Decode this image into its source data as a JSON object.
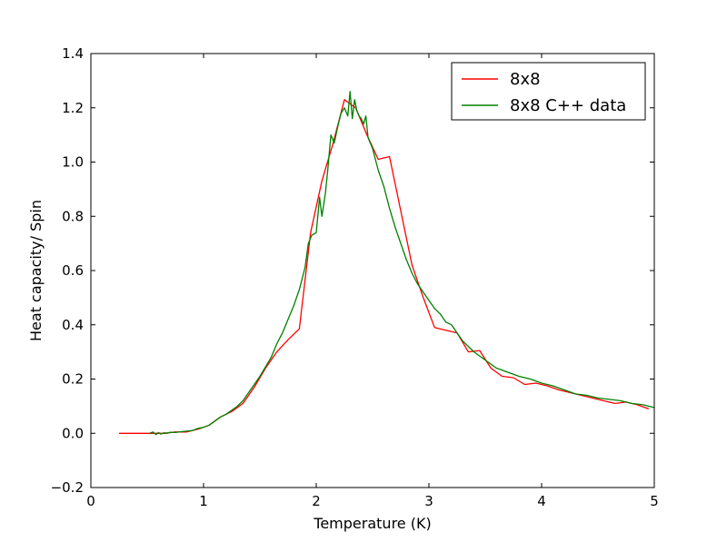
{
  "chart_data": {
    "type": "line",
    "title": "",
    "xlabel": "Temperature (K)",
    "ylabel": "Heat capacity/ Spin",
    "xlim": [
      0,
      5
    ],
    "ylim": [
      -0.2,
      1.4
    ],
    "xticks": [
      0,
      1,
      2,
      3,
      4,
      5
    ],
    "xtick_labels": [
      "0",
      "1",
      "2",
      "3",
      "4",
      "5"
    ],
    "yticks": [
      -0.2,
      0.0,
      0.2,
      0.4,
      0.6,
      0.8,
      1.0,
      1.2,
      1.4
    ],
    "ytick_labels": [
      "−0.2",
      "0.0",
      "0.2",
      "0.4",
      "0.6",
      "0.8",
      "1.0",
      "1.2",
      "1.4"
    ],
    "grid": false,
    "legend_position": "top-right",
    "series": [
      {
        "name": "8x8",
        "color": "#ff0000",
        "x": [
          0.25,
          0.35,
          0.45,
          0.55,
          0.65,
          0.75,
          0.85,
          0.95,
          1.05,
          1.15,
          1.25,
          1.35,
          1.45,
          1.55,
          1.65,
          1.75,
          1.85,
          1.95,
          2.05,
          2.15,
          2.25,
          2.35,
          2.45,
          2.55,
          2.65,
          2.75,
          2.85,
          2.95,
          3.05,
          3.15,
          3.25,
          3.35,
          3.45,
          3.55,
          3.65,
          3.75,
          3.85,
          3.95,
          4.05,
          4.15,
          4.25,
          4.35,
          4.45,
          4.55,
          4.65,
          4.75,
          4.85,
          4.95
        ],
        "values": [
          0.0,
          0.0,
          0.0,
          0.0,
          0.0,
          0.005,
          0.005,
          0.015,
          0.03,
          0.06,
          0.08,
          0.11,
          0.17,
          0.24,
          0.3,
          0.345,
          0.385,
          0.74,
          0.93,
          1.07,
          1.23,
          1.2,
          1.1,
          1.01,
          1.02,
          0.82,
          0.62,
          0.5,
          0.39,
          0.38,
          0.37,
          0.3,
          0.305,
          0.24,
          0.21,
          0.205,
          0.18,
          0.185,
          0.175,
          0.16,
          0.15,
          0.14,
          0.13,
          0.12,
          0.11,
          0.115,
          0.105,
          0.09
        ]
      },
      {
        "name": "8x8 C++ data",
        "color": "#008000",
        "x": [
          0.52,
          0.55,
          0.58,
          0.6,
          0.62,
          0.65,
          0.68,
          0.7,
          0.75,
          0.8,
          0.85,
          0.9,
          0.95,
          1.0,
          1.05,
          1.1,
          1.15,
          1.2,
          1.25,
          1.3,
          1.35,
          1.4,
          1.45,
          1.5,
          1.55,
          1.6,
          1.65,
          1.7,
          1.75,
          1.8,
          1.85,
          1.9,
          1.93,
          1.96,
          2.0,
          2.03,
          2.05,
          2.08,
          2.1,
          2.13,
          2.16,
          2.19,
          2.22,
          2.25,
          2.28,
          2.3,
          2.32,
          2.34,
          2.36,
          2.38,
          2.4,
          2.42,
          2.44,
          2.46,
          2.5,
          2.55,
          2.6,
          2.65,
          2.7,
          2.75,
          2.8,
          2.85,
          2.9,
          2.95,
          3.0,
          3.05,
          3.1,
          3.15,
          3.2,
          3.25,
          3.3,
          3.35,
          3.4,
          3.5,
          3.6,
          3.7,
          3.8,
          3.9,
          4.0,
          4.1,
          4.2,
          4.3,
          4.4,
          4.5,
          4.6,
          4.7,
          4.8,
          4.9,
          5.0
        ],
        "values": [
          0.0,
          0.005,
          -0.005,
          0.003,
          -0.003,
          0.002,
          0.0,
          0.004,
          0.003,
          0.006,
          0.008,
          0.01,
          0.018,
          0.022,
          0.03,
          0.045,
          0.06,
          0.07,
          0.085,
          0.1,
          0.12,
          0.15,
          0.18,
          0.21,
          0.245,
          0.28,
          0.33,
          0.37,
          0.42,
          0.47,
          0.53,
          0.61,
          0.7,
          0.73,
          0.74,
          0.87,
          0.8,
          0.88,
          0.96,
          1.1,
          1.07,
          1.13,
          1.18,
          1.2,
          1.17,
          1.26,
          1.16,
          1.23,
          1.19,
          1.17,
          1.16,
          1.14,
          1.17,
          1.09,
          1.05,
          0.97,
          0.91,
          0.83,
          0.76,
          0.7,
          0.64,
          0.59,
          0.55,
          0.52,
          0.49,
          0.46,
          0.44,
          0.41,
          0.4,
          0.37,
          0.34,
          0.32,
          0.3,
          0.27,
          0.24,
          0.225,
          0.21,
          0.2,
          0.185,
          0.175,
          0.16,
          0.145,
          0.14,
          0.13,
          0.125,
          0.12,
          0.11,
          0.105,
          0.095
        ]
      }
    ]
  }
}
